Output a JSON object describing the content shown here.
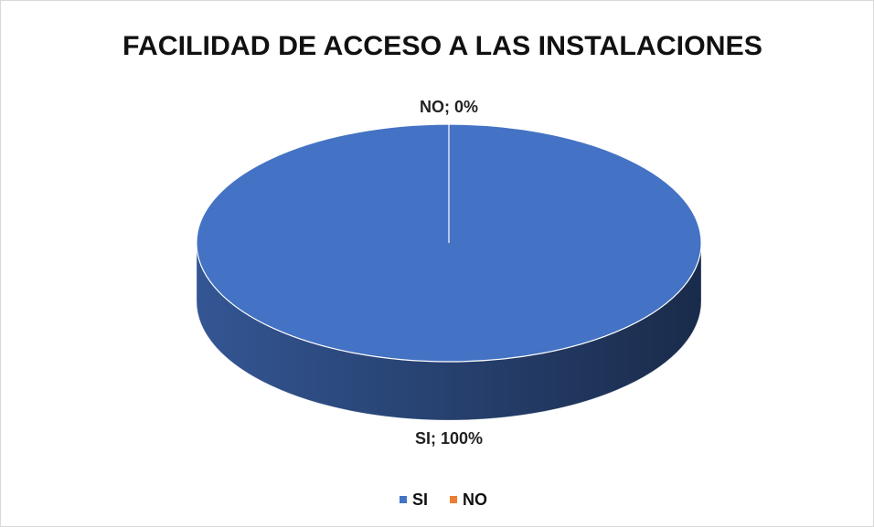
{
  "chart_data": {
    "type": "pie",
    "title": "FACILIDAD DE ACCESO A LAS INSTALACIONES",
    "categories": [
      "SI",
      "NO"
    ],
    "values": [
      100,
      0
    ],
    "value_labels": [
      "SI; 100%",
      "NO; 0%"
    ],
    "colors": [
      "#4472c4",
      "#ed7d31"
    ],
    "legend": "bottom"
  }
}
